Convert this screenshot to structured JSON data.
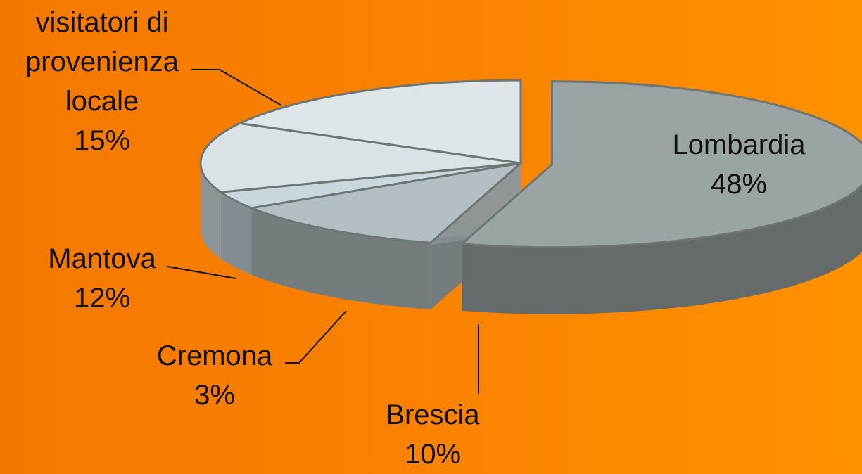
{
  "chart_data": {
    "type": "pie",
    "categories": [
      "Lombardia",
      "Brescia",
      "Cremona",
      "Mantova",
      "visitatori di provenienza locale"
    ],
    "values": [
      48,
      10,
      3,
      12,
      15
    ],
    "value_labels": [
      "48%",
      "10%",
      "3%",
      "12%",
      "15%"
    ],
    "colors": [
      "#9ba4a4",
      "#b3bfc2",
      "#c9d8dd",
      "#d9e3e6",
      "#dfe6e9"
    ],
    "exploded": [
      true,
      false,
      false,
      false,
      false
    ]
  }
}
